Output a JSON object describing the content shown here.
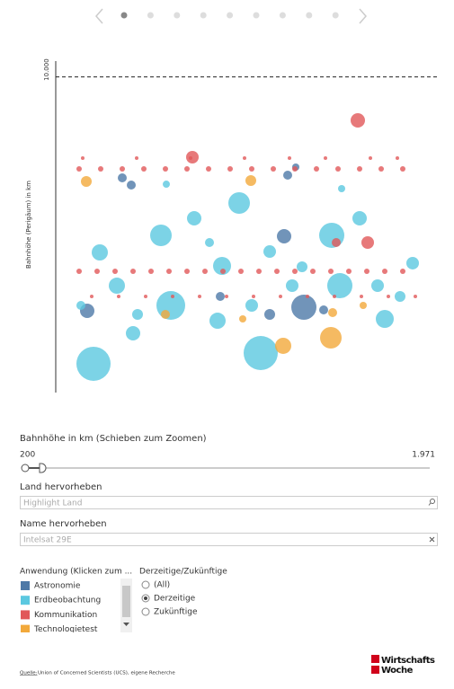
{
  "chart_data": {
    "type": "scatter",
    "ylabel": "Bahnhöhe (Perigäum) in km",
    "xlim": [
      0,
      426
    ],
    "ylim": [
      0,
      10500
    ],
    "yticks": [
      {
        "value": 10000,
        "label": "10.000"
      }
    ],
    "series": [
      {
        "name": "Astronomie",
        "color": "#4e79a7",
        "x": [
          276,
          254,
          35,
          74,
          84,
          258,
          267,
          183,
          238,
          298
        ],
        "values": [
          2703,
          4951,
          2589,
          6801,
          6573,
          6886,
          7142,
          3045,
          2476,
          2618
        ],
        "sizes": [
          14,
          8,
          8,
          5,
          5,
          5,
          4,
          5,
          6,
          5
        ]
      },
      {
        "name": "Erdbeobachtung",
        "color": "#5bc8e0",
        "x": [
          42,
          228,
          204,
          307,
          117,
          154,
          338,
          49,
          128,
          316,
          185,
          68,
          366,
          86,
          180,
          238,
          397,
          358,
          263,
          218,
          171,
          91,
          318,
          123,
          274,
          383,
          28
        ],
        "values": [
          911,
          1252,
          6004,
          4980,
          4980,
          5520,
          5520,
          4439,
          2760,
          3386,
          4012,
          3386,
          2333,
          1878,
          2276,
          4467,
          4098,
          3386,
          3386,
          2760,
          4752,
          2476,
          6459,
          6601,
          3984,
          3045,
          2760
        ],
        "sizes": [
          19,
          19,
          12,
          14,
          12,
          8,
          8,
          9,
          16,
          14,
          10,
          9,
          10,
          8,
          9,
          7,
          7,
          7,
          7,
          7,
          5,
          6,
          4,
          4,
          6,
          6,
          5
        ]
      },
      {
        "name": "Kommunikation",
        "color": "#e15759",
        "x": [
          26,
          50,
          74,
          98,
          122,
          146,
          170,
          194,
          218,
          242,
          266,
          290,
          314,
          338,
          362,
          386,
          30,
          90,
          150,
          210,
          260,
          300,
          350,
          380,
          336,
          152,
          347,
          312,
          26,
          46,
          66,
          86,
          106,
          126,
          146,
          166,
          186,
          206,
          226,
          246,
          266,
          286,
          306,
          326,
          346,
          366,
          386,
          40,
          70,
          100,
          130,
          160,
          190,
          220,
          250,
          280,
          310,
          340,
          370,
          400
        ],
        "values": [
          7085,
          7085,
          7085,
          7085,
          7085,
          7085,
          7085,
          7085,
          7085,
          7085,
          7085,
          7085,
          7085,
          7085,
          7085,
          7085,
          7427,
          7427,
          7427,
          7427,
          7427,
          7427,
          7427,
          7427,
          8622,
          7455,
          4752,
          4752,
          3841,
          3841,
          3841,
          3841,
          3841,
          3841,
          3841,
          3841,
          3841,
          3841,
          3841,
          3841,
          3841,
          3841,
          3841,
          3841,
          3841,
          3841,
          3841,
          3045,
          3045,
          3045,
          3045,
          3045,
          3045,
          3045,
          3045,
          3045,
          3045,
          3045,
          3045,
          3045
        ],
        "sizes": [
          3,
          3,
          3,
          3,
          3,
          3,
          3,
          3,
          3,
          3,
          3,
          3,
          3,
          3,
          3,
          3,
          2,
          2,
          2,
          2,
          2,
          2,
          2,
          2,
          8,
          7,
          7,
          5,
          3,
          3,
          3,
          3,
          3,
          3,
          3,
          3,
          3,
          3,
          3,
          3,
          3,
          3,
          3,
          3,
          3,
          3,
          3,
          2,
          2,
          2,
          2,
          2,
          2,
          2,
          2,
          2,
          2,
          2,
          2,
          2
        ]
      },
      {
        "name": "Technologietest",
        "color": "#f2a93b",
        "x": [
          306,
          34,
          217,
          253,
          122,
          308,
          342,
          208
        ],
        "values": [
          1736,
          6687,
          6715,
          1480,
          2476,
          2533,
          2760,
          2333
        ],
        "sizes": [
          12,
          6,
          6,
          9,
          5,
          5,
          4,
          4
        ]
      }
    ]
  },
  "slider": {
    "label": "Bahnhöhe in km (Schieben zum Zoomen)",
    "min": "200",
    "max": "1.971"
  },
  "land": {
    "label": "Land hervorheben",
    "placeholder": "Highlight Land"
  },
  "name": {
    "label": "Name hervorheben",
    "value": "Intelsat 29E"
  },
  "legend": {
    "title": "Anwendung (Klicken zum ..."
  },
  "status": {
    "title": "Derzeitige/Zukünftige",
    "options": [
      "(All)",
      "Derzeitige",
      "Zukünftige"
    ],
    "selected": 1
  },
  "footer": {
    "source_label": "Quelle:",
    "source": "Union of Concerned Scientists (UCS), eigene Recherche"
  },
  "logo": {
    "line1": "Wirtschafts",
    "line2": "Woche"
  }
}
